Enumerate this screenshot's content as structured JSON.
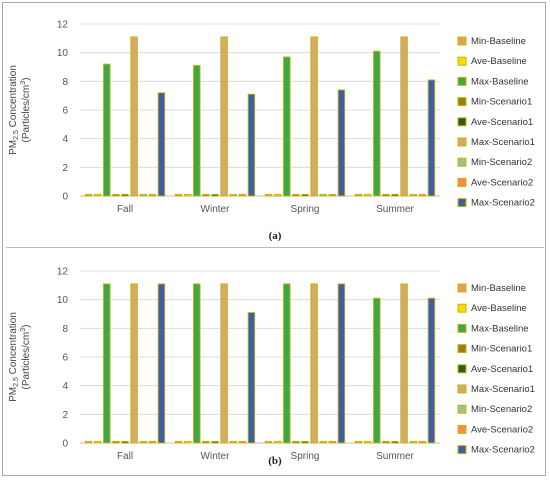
{
  "figure": {
    "panel_labels": [
      "(a)",
      "(b)"
    ]
  },
  "series_colors": {
    "Min-Baseline": "#e3a05c",
    "Ave-Baseline": "#f1de00",
    "Max-Baseline": "#3da848",
    "Min-Scenario1": "#9b7d18",
    "Ave-Scenario1": "#2c5c22",
    "Max-Scenario1": "#d2aa6a",
    "Min-Scenario2": "#9cc38a",
    "Ave-Scenario2": "#ff8a4a",
    "Max-Scenario2": "#3e5ea8"
  },
  "chart_data": [
    {
      "type": "bar",
      "panel": "(a)",
      "ylabel": "PM2.5 Concentration (Particles/cm³)",
      "ylabel_line1": "PM",
      "ylabel_sub": "2.5",
      "ylabel_line1_rest": " Concentration",
      "ylabel_line2": "(Particles/cm",
      "ylabel_sup": "3",
      "ylabel_line2_rest": ")",
      "ylim": [
        0,
        12
      ],
      "yticks": [
        "0",
        "2",
        "4",
        "6",
        "8",
        "10",
        "12"
      ],
      "grid": true,
      "legend_position": "right",
      "categories": [
        "Fall",
        "Winter",
        "Spring",
        "Summer"
      ],
      "series": [
        {
          "name": "Min-Baseline",
          "values": [
            0.02,
            0.02,
            0.02,
            0.02
          ]
        },
        {
          "name": "Ave-Baseline",
          "values": [
            0.05,
            0.05,
            0.05,
            0.05
          ]
        },
        {
          "name": "Max-Baseline",
          "values": [
            9.2,
            9.1,
            9.7,
            10.1
          ]
        },
        {
          "name": "Min-Scenario1",
          "values": [
            0.02,
            0.02,
            0.02,
            0.02
          ]
        },
        {
          "name": "Ave-Scenario1",
          "values": [
            0.08,
            0.08,
            0.08,
            0.08
          ]
        },
        {
          "name": "Max-Scenario1",
          "values": [
            11.1,
            11.1,
            11.1,
            11.1
          ]
        },
        {
          "name": "Min-Scenario2",
          "values": [
            0.02,
            0.02,
            0.02,
            0.02
          ]
        },
        {
          "name": "Ave-Scenario2",
          "values": [
            0.08,
            0.08,
            0.08,
            0.08
          ]
        },
        {
          "name": "Max-Scenario2",
          "values": [
            7.2,
            7.1,
            7.4,
            8.1
          ]
        }
      ]
    },
    {
      "type": "bar",
      "panel": "(b)",
      "ylabel": "PM2.5 Concentration (Particles/cm³)",
      "ylabel_line1": "PM",
      "ylabel_sub": "2.5",
      "ylabel_line1_rest": " Concentration",
      "ylabel_line2": "(Particles/cm",
      "ylabel_sup": "3",
      "ylabel_line2_rest": ")",
      "ylim": [
        0,
        12
      ],
      "yticks": [
        "0",
        "2",
        "4",
        "6",
        "8",
        "10",
        "12"
      ],
      "grid": true,
      "legend_position": "right",
      "categories": [
        "Fall",
        "Winter",
        "Spring",
        "Summer"
      ],
      "series": [
        {
          "name": "Min-Baseline",
          "values": [
            0.02,
            0.02,
            0.02,
            0.02
          ]
        },
        {
          "name": "Ave-Baseline",
          "values": [
            0.05,
            0.05,
            0.05,
            0.05
          ]
        },
        {
          "name": "Max-Baseline",
          "values": [
            11.1,
            11.1,
            11.1,
            10.1
          ]
        },
        {
          "name": "Min-Scenario1",
          "values": [
            0.02,
            0.02,
            0.02,
            0.02
          ]
        },
        {
          "name": "Ave-Scenario1",
          "values": [
            0.08,
            0.08,
            0.08,
            0.08
          ]
        },
        {
          "name": "Max-Scenario1",
          "values": [
            11.1,
            11.1,
            11.1,
            11.1
          ]
        },
        {
          "name": "Min-Scenario2",
          "values": [
            0.02,
            0.02,
            0.02,
            0.02
          ]
        },
        {
          "name": "Ave-Scenario2",
          "values": [
            0.08,
            0.08,
            0.08,
            0.08
          ]
        },
        {
          "name": "Max-Scenario2",
          "values": [
            11.1,
            9.1,
            11.1,
            10.1
          ]
        }
      ]
    }
  ]
}
